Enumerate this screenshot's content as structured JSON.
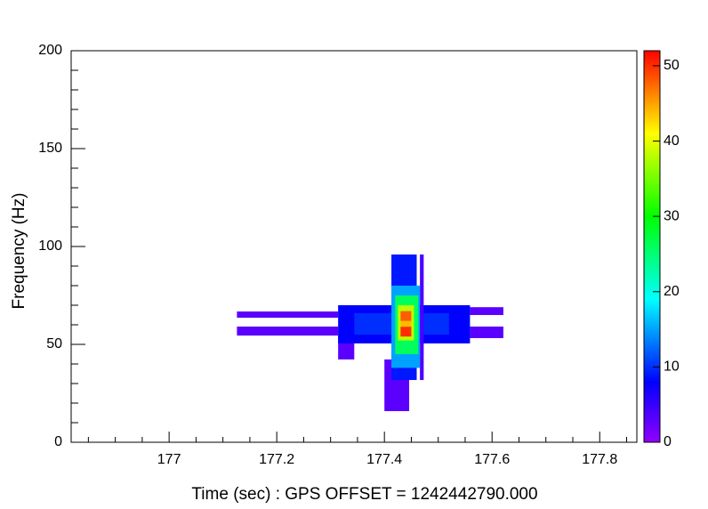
{
  "chart_data": {
    "type": "heatmap",
    "x_label": "Time (sec) : GPS OFFSET = 1242442790.000",
    "y_label": "Frequency (Hz)",
    "xlim": [
      176.818,
      177.869
    ],
    "xticks": [
      177,
      177.2,
      177.4,
      177.6,
      177.8
    ],
    "ylim": [
      0,
      200
    ],
    "yticks": [
      0,
      50,
      100,
      150,
      200
    ],
    "zlim": [
      0,
      52
    ],
    "zticks": [
      0,
      10,
      20,
      30,
      40,
      50
    ],
    "palette": [
      {
        "value": 0,
        "color": "#9100ff"
      },
      {
        "value": 8,
        "color": "#0000ff"
      },
      {
        "value": 19,
        "color": "#00ffff"
      },
      {
        "value": 30,
        "color": "#00ff00"
      },
      {
        "value": 41,
        "color": "#ffff00"
      },
      {
        "value": 52,
        "color": "#ff0000"
      }
    ],
    "cells": [
      {
        "x": [
          177.126,
          177.314
        ],
        "y": [
          63.6,
          66.8
        ],
        "value": 3
      },
      {
        "x": [
          177.126,
          177.314
        ],
        "y": [
          54.5,
          59.1
        ],
        "value": 3
      },
      {
        "x": [
          177.559,
          177.621
        ],
        "y": [
          65.0,
          69.0
        ],
        "value": 3
      },
      {
        "x": [
          177.559,
          177.621
        ],
        "y": [
          53.2,
          59.1
        ],
        "value": 3
      },
      {
        "x": [
          177.314,
          177.344
        ],
        "y": [
          42.3,
          54.5
        ],
        "value": 3
      },
      {
        "x": [
          177.4,
          177.446
        ],
        "y": [
          15.9,
          42.3
        ],
        "value": 3
      },
      {
        "x": [
          177.314,
          177.559
        ],
        "y": [
          50.5,
          70.0
        ],
        "value": 8
      },
      {
        "x": [
          177.344,
          177.52
        ],
        "y": [
          55.0,
          66.0
        ],
        "value": 10
      },
      {
        "x": [
          177.413,
          177.46
        ],
        "y": [
          31.8,
          95.9
        ],
        "value": 9
      },
      {
        "x": [
          177.466,
          177.473
        ],
        "y": [
          31.8,
          95.9
        ],
        "value": 4
      },
      {
        "x": [
          177.413,
          177.466
        ],
        "y": [
          38.0,
          80.0
        ],
        "value": 15
      },
      {
        "x": [
          177.42,
          177.463
        ],
        "y": [
          45.0,
          75.0
        ],
        "value": 26
      },
      {
        "x": [
          177.425,
          177.455
        ],
        "y": [
          52.0,
          70.0
        ],
        "value": 38
      },
      {
        "x": [
          177.43,
          177.45
        ],
        "y": [
          59.0,
          62.0
        ],
        "value": 44
      },
      {
        "x": [
          177.43,
          177.45
        ],
        "y": [
          54.0,
          59.0
        ],
        "value": 50
      },
      {
        "x": [
          177.43,
          177.45
        ],
        "y": [
          62.0,
          67.0
        ],
        "value": 48
      }
    ]
  }
}
